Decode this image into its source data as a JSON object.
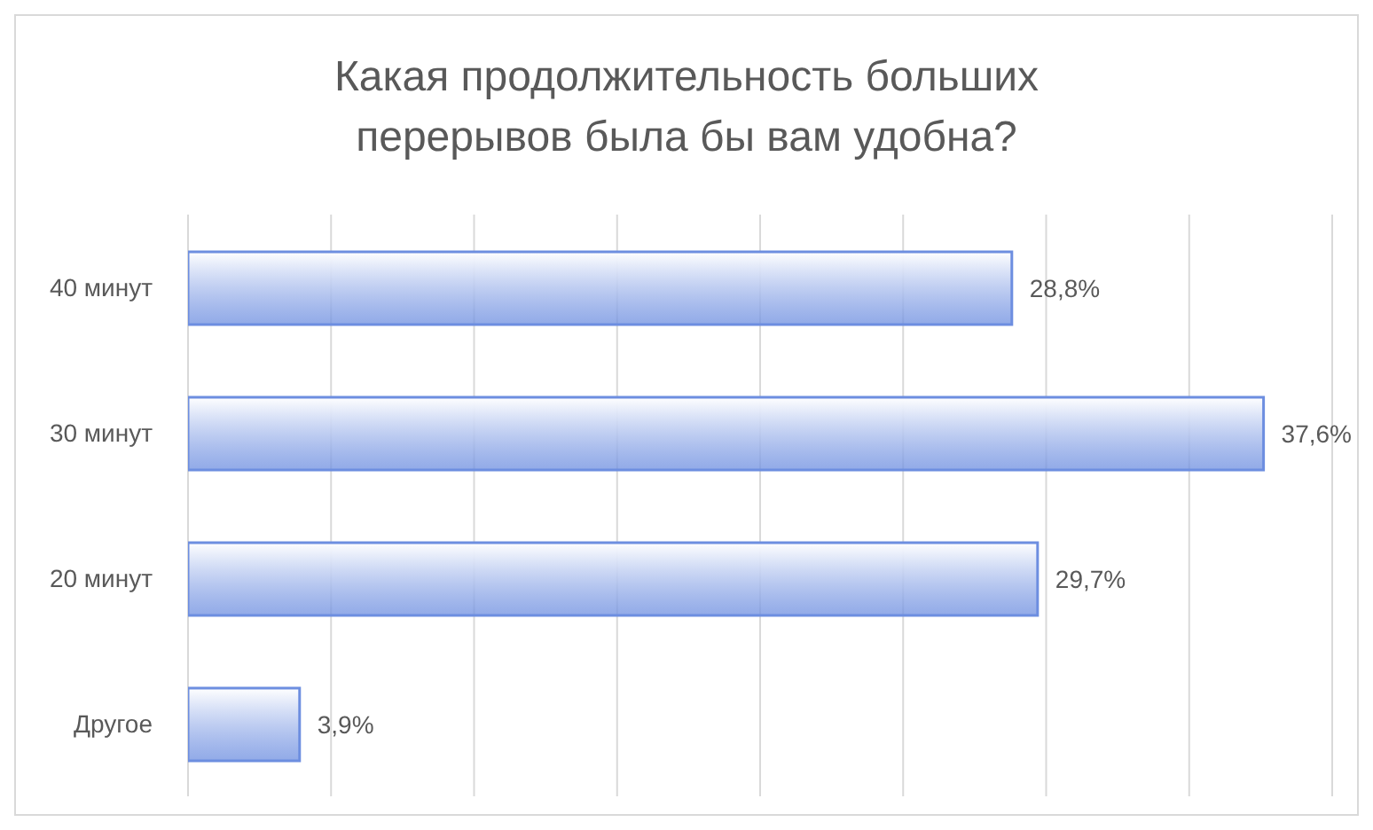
{
  "chart_data": {
    "type": "bar",
    "orientation": "horizontal",
    "title": "Какая продолжительность больших перерывов была бы вам удобна?",
    "categories": [
      "40 минут",
      "30 минут",
      "20 минут",
      "Другое"
    ],
    "values": [
      28.8,
      37.6,
      29.7,
      3.9
    ],
    "value_labels": [
      "28,8%",
      "37,6%",
      "29,7%",
      "3,9%"
    ],
    "color": "#6d8ee0",
    "xlim": [
      0,
      40
    ],
    "xticks": [
      {
        "value": 0,
        "label": null
      },
      {
        "value": 5,
        "label": null
      },
      {
        "value": 10,
        "label": null
      },
      {
        "value": 15,
        "label": null
      },
      {
        "value": 20,
        "label": null
      },
      {
        "value": 25,
        "label": null
      },
      {
        "value": 30,
        "label": null
      },
      {
        "value": 35,
        "label": null
      },
      {
        "value": 40,
        "label": null
      }
    ],
    "grid": "x",
    "tick_labels": "y"
  }
}
